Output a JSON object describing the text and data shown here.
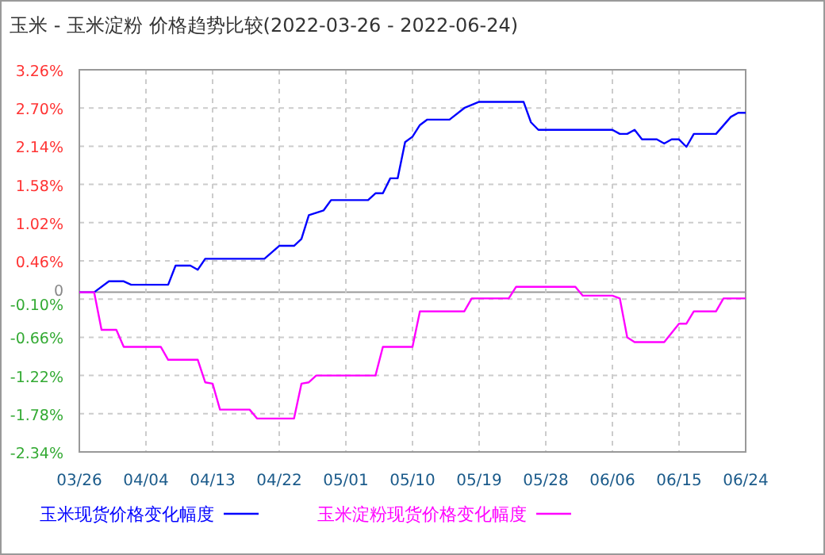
{
  "chart_data": {
    "type": "line",
    "title": "玉米 - 玉米淀粉 价格趋势比较(2022-03-26 - 2022-06-24)",
    "xlim": [
      "2022-03-26",
      "2022-06-24"
    ],
    "xticks": [
      {
        "value": "2022-03-26",
        "label": "03/26"
      },
      {
        "value": "2022-04-04",
        "label": "04/04"
      },
      {
        "value": "2022-04-13",
        "label": "04/13"
      },
      {
        "value": "2022-04-22",
        "label": "04/22"
      },
      {
        "value": "2022-05-01",
        "label": "05/01"
      },
      {
        "value": "2022-05-10",
        "label": "05/10"
      },
      {
        "value": "2022-05-19",
        "label": "05/19"
      },
      {
        "value": "2022-05-28",
        "label": "05/28"
      },
      {
        "value": "2022-06-06",
        "label": "06/06"
      },
      {
        "value": "2022-06-15",
        "label": "06/15"
      },
      {
        "value": "2022-06-24",
        "label": "06/24"
      }
    ],
    "ylim": [
      -2.34,
      3.26
    ],
    "yticks": [
      {
        "value": 3.26,
        "label": "3.26%"
      },
      {
        "value": 2.7,
        "label": "2.70%"
      },
      {
        "value": 2.14,
        "label": "2.14%"
      },
      {
        "value": 1.58,
        "label": "1.58%"
      },
      {
        "value": 1.02,
        "label": "1.02%"
      },
      {
        "value": 0.46,
        "label": "0.46%"
      },
      {
        "value": 0,
        "label": "0"
      },
      {
        "value": -0.1,
        "label": "-0.10%"
      },
      {
        "value": -0.66,
        "label": "-0.66%"
      },
      {
        "value": -1.22,
        "label": "-1.22%"
      },
      {
        "value": -1.78,
        "label": "-1.78%"
      },
      {
        "value": -2.34,
        "label": "-2.34%"
      }
    ],
    "grid": true,
    "legend": "bottom",
    "marker": "none",
    "line_style": "solid",
    "series": [
      {
        "name": "玉米现货价格变化幅度",
        "color": "#0000ff",
        "x": [
          "2022-03-26",
          "2022-03-28",
          "2022-03-30",
          "2022-04-01",
          "2022-04-02",
          "2022-04-07",
          "2022-04-08",
          "2022-04-10",
          "2022-04-11",
          "2022-04-12",
          "2022-04-20",
          "2022-04-22",
          "2022-04-24",
          "2022-04-25",
          "2022-04-26",
          "2022-04-28",
          "2022-04-29",
          "2022-05-04",
          "2022-05-05",
          "2022-05-06",
          "2022-05-07",
          "2022-05-08",
          "2022-05-09",
          "2022-05-10",
          "2022-05-11",
          "2022-05-12",
          "2022-05-15",
          "2022-05-17",
          "2022-05-19",
          "2022-05-25",
          "2022-05-26",
          "2022-05-27",
          "2022-06-06",
          "2022-06-07",
          "2022-06-08",
          "2022-06-09",
          "2022-06-10",
          "2022-06-12",
          "2022-06-13",
          "2022-06-14",
          "2022-06-15",
          "2022-06-16",
          "2022-06-17",
          "2022-06-20",
          "2022-06-22",
          "2022-06-23",
          "2022-06-24"
        ],
        "values": [
          0,
          0,
          0.16,
          0.16,
          0.11,
          0.11,
          0.39,
          0.39,
          0.33,
          0.49,
          0.49,
          0.68,
          0.68,
          0.78,
          1.13,
          1.2,
          1.35,
          1.35,
          1.45,
          1.45,
          1.67,
          1.67,
          2.2,
          2.28,
          2.45,
          2.53,
          2.53,
          2.7,
          2.79,
          2.79,
          2.49,
          2.38,
          2.38,
          2.32,
          2.32,
          2.38,
          2.24,
          2.24,
          2.18,
          2.24,
          2.24,
          2.13,
          2.32,
          2.32,
          2.57,
          2.63,
          2.63
        ]
      },
      {
        "name": "玉米淀粉现货价格变化幅度",
        "color": "#ff00ff",
        "x": [
          "2022-03-26",
          "2022-03-28",
          "2022-03-29",
          "2022-03-31",
          "2022-04-01",
          "2022-04-06",
          "2022-04-07",
          "2022-04-11",
          "2022-04-12",
          "2022-04-13",
          "2022-04-14",
          "2022-04-18",
          "2022-04-19",
          "2022-04-24",
          "2022-04-25",
          "2022-04-26",
          "2022-04-27",
          "2022-05-05",
          "2022-05-06",
          "2022-05-10",
          "2022-05-11",
          "2022-05-17",
          "2022-05-18",
          "2022-05-23",
          "2022-05-24",
          "2022-06-01",
          "2022-06-02",
          "2022-06-06",
          "2022-06-07",
          "2022-06-08",
          "2022-06-09",
          "2022-06-13",
          "2022-06-15",
          "2022-06-16",
          "2022-06-17",
          "2022-06-20",
          "2022-06-21",
          "2022-06-24"
        ],
        "values": [
          0,
          0,
          -0.55,
          -0.55,
          -0.8,
          -0.8,
          -0.99,
          -0.99,
          -1.32,
          -1.34,
          -1.72,
          -1.72,
          -1.85,
          -1.85,
          -1.34,
          -1.32,
          -1.22,
          -1.22,
          -0.8,
          -0.8,
          -0.28,
          -0.28,
          -0.09,
          -0.09,
          0.08,
          0.08,
          -0.05,
          -0.05,
          -0.09,
          -0.66,
          -0.73,
          -0.73,
          -0.46,
          -0.46,
          -0.28,
          -0.28,
          -0.09,
          -0.09
        ]
      }
    ]
  }
}
